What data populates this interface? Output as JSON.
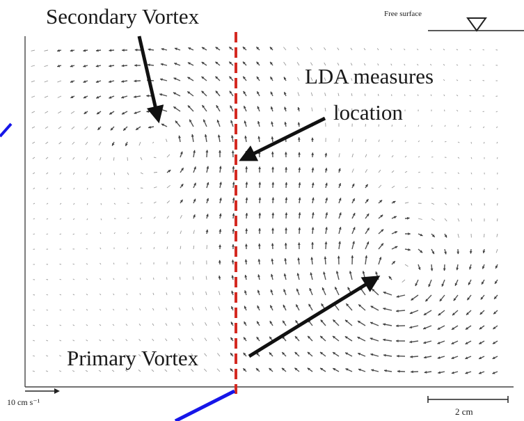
{
  "labels": {
    "secondary_vortex": "Secondary Vortex",
    "lda_line1": "LDA measures",
    "lda_line2": "location",
    "primary_vortex": "Primary Vortex",
    "free_surface": "Free surface",
    "velocity_scale": "10 cm s⁻¹",
    "length_scale": "2 cm"
  },
  "colors": {
    "measure_line": "#d42a22",
    "pointer": "#1616e8",
    "arrows": "#111111",
    "vectors": "#333333"
  }
}
